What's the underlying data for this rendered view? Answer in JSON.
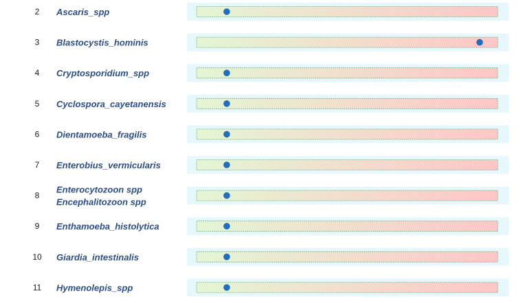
{
  "chart_data": {
    "type": "scatter",
    "xlim": [
      0,
      1
    ],
    "colors": {
      "label": "#2b4e8c",
      "number": "#1a1a1a",
      "row_background": "#e6f8fb",
      "bar_start": "#e4f6d4",
      "bar_end": "#ffc6c6",
      "bar_border": "#7ab884",
      "marker": "#1f6fc0"
    },
    "rows": [
      {
        "number": "2",
        "label": [
          "Ascaris_spp"
        ],
        "value": 0.1
      },
      {
        "number": "3",
        "label": [
          "Blastocystis_hominis"
        ],
        "value": 0.94
      },
      {
        "number": "4",
        "label": [
          "Cryptosporidium_spp"
        ],
        "value": 0.1
      },
      {
        "number": "5",
        "label": [
          "Cyclospora_cayetanensis"
        ],
        "value": 0.1
      },
      {
        "number": "6",
        "label": [
          "Dientamoeba_fragilis"
        ],
        "value": 0.1
      },
      {
        "number": "7",
        "label": [
          "Enterobius_vermicularis"
        ],
        "value": 0.1
      },
      {
        "number": "8",
        "label": [
          "Enterocytozoon spp",
          "Encephalitozoon spp"
        ],
        "value": 0.1
      },
      {
        "number": "9",
        "label": [
          "Enthamoeba_histolytica"
        ],
        "value": 0.1
      },
      {
        "number": "10",
        "label": [
          "Giardia_intestinalis"
        ],
        "value": 0.1
      },
      {
        "number": "11",
        "label": [
          "Hymenolepis_spp"
        ],
        "value": 0.1
      }
    ]
  }
}
